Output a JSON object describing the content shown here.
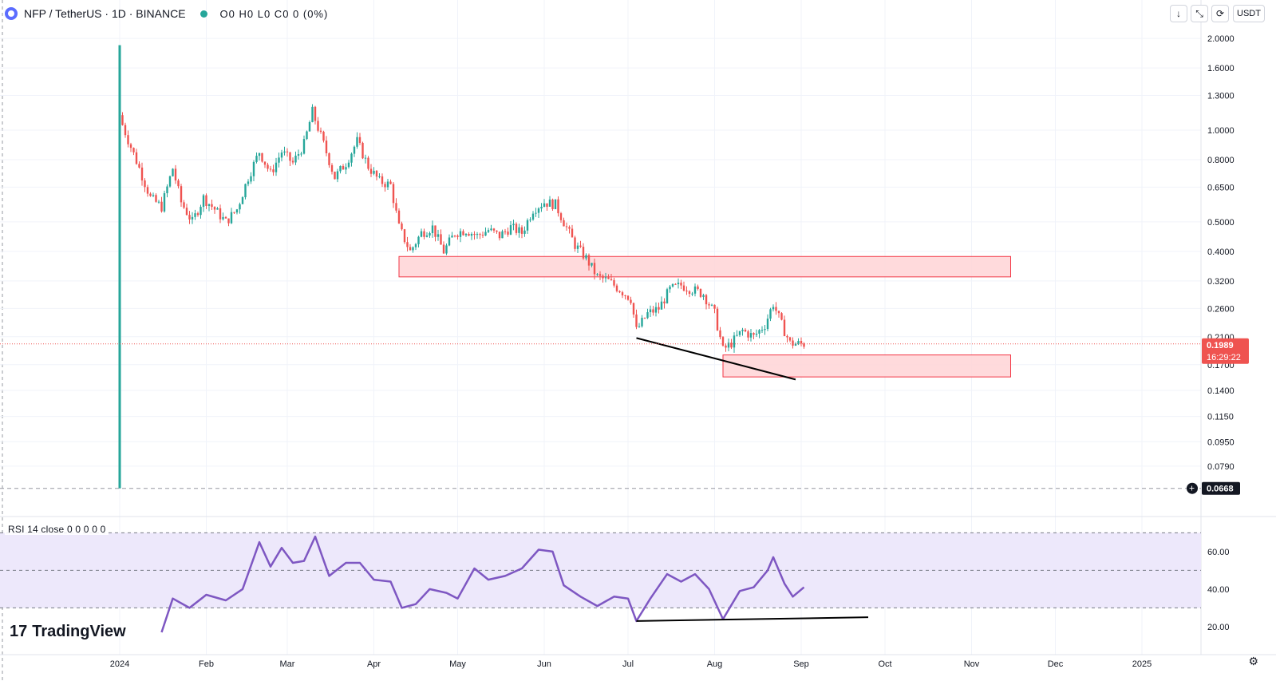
{
  "header": {
    "title": "NFP / TetherUS · 1D · BINANCE",
    "ohlc": "O0 H0 L0 C0 0 (0%)"
  },
  "toolbar": {
    "down_label": "↓",
    "collapse_label": "⤡",
    "refresh_label": "⟳",
    "currency": "USDT"
  },
  "rsi": {
    "label": "RSI 14 close 0 0 0 0 0"
  },
  "branding": {
    "name": "TradingView",
    "mark": "17"
  },
  "price_tags": {
    "last_price": "0.1989",
    "countdown": "16:29:22",
    "low_price": "0.0668"
  },
  "colors": {
    "up": "#26a69a",
    "down": "#ef5350",
    "zone_fill": "#ffd3d6",
    "zone_stroke": "#f23645",
    "rsi_line": "#7e57c2",
    "rsi_band": "#ede8fb",
    "trendline": "#000000"
  },
  "chart_data": [
    {
      "type": "candlestick",
      "x_axis": {
        "type": "date",
        "ticks": [
          "2024",
          "Feb",
          "Mar",
          "Apr",
          "May",
          "Jun",
          "Jul",
          "Aug",
          "Sep",
          "Oct",
          "Nov",
          "Dec",
          "2025"
        ]
      },
      "y_axis": {
        "scale": "log",
        "ticks": [
          "2.0000",
          "1.6000",
          "1.3000",
          "1.0000",
          "0.8000",
          "0.6500",
          "0.5000",
          "0.4000",
          "0.3200",
          "0.2600",
          "0.2100",
          "0.1700",
          "0.1400",
          "0.1150",
          "0.0950",
          "0.0790"
        ]
      },
      "listing_candle": {
        "date": "2024-01-01",
        "high": 1.9,
        "low": 0.0668
      },
      "close_path": [
        [
          "2024-01-01",
          1.1
        ],
        [
          "2024-01-04",
          0.93
        ],
        [
          "2024-01-08",
          0.75
        ],
        [
          "2024-01-12",
          0.6
        ],
        [
          "2024-01-16",
          0.56
        ],
        [
          "2024-01-20",
          0.75
        ],
        [
          "2024-01-23",
          0.58
        ],
        [
          "2024-01-27",
          0.5
        ],
        [
          "2024-01-31",
          0.6
        ],
        [
          "2024-02-04",
          0.55
        ],
        [
          "2024-02-08",
          0.5
        ],
        [
          "2024-02-12",
          0.55
        ],
        [
          "2024-02-16",
          0.7
        ],
        [
          "2024-02-20",
          0.85
        ],
        [
          "2024-02-24",
          0.72
        ],
        [
          "2024-02-28",
          0.85
        ],
        [
          "2024-03-03",
          0.78
        ],
        [
          "2024-03-07",
          0.9
        ],
        [
          "2024-03-10",
          1.15
        ],
        [
          "2024-03-14",
          0.9
        ],
        [
          "2024-03-18",
          0.7
        ],
        [
          "2024-03-22",
          0.78
        ],
        [
          "2024-03-26",
          0.92
        ],
        [
          "2024-03-30",
          0.76
        ],
        [
          "2024-04-03",
          0.68
        ],
        [
          "2024-04-07",
          0.66
        ],
        [
          "2024-04-10",
          0.48
        ],
        [
          "2024-04-14",
          0.4
        ],
        [
          "2024-04-18",
          0.46
        ],
        [
          "2024-04-22",
          0.48
        ],
        [
          "2024-04-26",
          0.4
        ],
        [
          "2024-04-30",
          0.46
        ],
        [
          "2024-05-04",
          0.47
        ],
        [
          "2024-05-08",
          0.45
        ],
        [
          "2024-05-12",
          0.47
        ],
        [
          "2024-05-16",
          0.45
        ],
        [
          "2024-05-20",
          0.48
        ],
        [
          "2024-05-24",
          0.46
        ],
        [
          "2024-05-28",
          0.55
        ],
        [
          "2024-06-01",
          0.58
        ],
        [
          "2024-06-05",
          0.57
        ],
        [
          "2024-06-08",
          0.5
        ],
        [
          "2024-06-12",
          0.42
        ],
        [
          "2024-06-16",
          0.38
        ],
        [
          "2024-06-20",
          0.33
        ],
        [
          "2024-06-24",
          0.32
        ],
        [
          "2024-06-28",
          0.3
        ],
        [
          "2024-07-02",
          0.28
        ],
        [
          "2024-07-04",
          0.22
        ],
        [
          "2024-07-08",
          0.25
        ],
        [
          "2024-07-12",
          0.26
        ],
        [
          "2024-07-16",
          0.3
        ],
        [
          "2024-07-20",
          0.31
        ],
        [
          "2024-07-24",
          0.3
        ],
        [
          "2024-07-28",
          0.29
        ],
        [
          "2024-08-01",
          0.25
        ],
        [
          "2024-08-04",
          0.19
        ],
        [
          "2024-08-07",
          0.2
        ],
        [
          "2024-08-11",
          0.22
        ],
        [
          "2024-08-15",
          0.21
        ],
        [
          "2024-08-19",
          0.23
        ],
        [
          "2024-08-22",
          0.27
        ],
        [
          "2024-08-25",
          0.23
        ],
        [
          "2024-08-28",
          0.2
        ],
        [
          "2024-09-01",
          0.1989
        ]
      ],
      "zones": [
        {
          "name": "resistance zone",
          "from": "2024-04-10",
          "to": "2024-11-15",
          "low": 0.33,
          "high": 0.385
        },
        {
          "name": "support zone",
          "from": "2024-08-04",
          "to": "2024-11-15",
          "low": 0.155,
          "high": 0.183
        }
      ],
      "trendline": {
        "from": [
          "2024-07-04",
          0.208
        ],
        "to": [
          "2024-08-30",
          0.152
        ]
      },
      "last_price": 0.1989,
      "low_marker": 0.0668
    },
    {
      "type": "line",
      "name": "RSI 14 close",
      "y_ticks": [
        "60.00",
        "40.00",
        "20.00"
      ],
      "band": [
        30,
        70
      ],
      "midline": 50,
      "series": [
        [
          "2024-01-16",
          17
        ],
        [
          "2024-01-20",
          35
        ],
        [
          "2024-01-26",
          30
        ],
        [
          "2024-02-01",
          37
        ],
        [
          "2024-02-08",
          34
        ],
        [
          "2024-02-14",
          40
        ],
        [
          "2024-02-20",
          65
        ],
        [
          "2024-02-24",
          52
        ],
        [
          "2024-02-28",
          62
        ],
        [
          "2024-03-03",
          54
        ],
        [
          "2024-03-07",
          55
        ],
        [
          "2024-03-11",
          68
        ],
        [
          "2024-03-16",
          47
        ],
        [
          "2024-03-22",
          54
        ],
        [
          "2024-03-27",
          54
        ],
        [
          "2024-04-01",
          45
        ],
        [
          "2024-04-07",
          44
        ],
        [
          "2024-04-11",
          30
        ],
        [
          "2024-04-16",
          32
        ],
        [
          "2024-04-21",
          40
        ],
        [
          "2024-04-27",
          38
        ],
        [
          "2024-05-01",
          35
        ],
        [
          "2024-05-07",
          51
        ],
        [
          "2024-05-12",
          45
        ],
        [
          "2024-05-18",
          47
        ],
        [
          "2024-05-24",
          51
        ],
        [
          "2024-05-30",
          61
        ],
        [
          "2024-06-04",
          60
        ],
        [
          "2024-06-08",
          42
        ],
        [
          "2024-06-14",
          36
        ],
        [
          "2024-06-20",
          31
        ],
        [
          "2024-06-26",
          36
        ],
        [
          "2024-07-01",
          35
        ],
        [
          "2024-07-04",
          23
        ],
        [
          "2024-07-09",
          35
        ],
        [
          "2024-07-15",
          48
        ],
        [
          "2024-07-20",
          44
        ],
        [
          "2024-07-25",
          48
        ],
        [
          "2024-07-30",
          40
        ],
        [
          "2024-08-04",
          24
        ],
        [
          "2024-08-10",
          39
        ],
        [
          "2024-08-15",
          41
        ],
        [
          "2024-08-20",
          50
        ],
        [
          "2024-08-22",
          57
        ],
        [
          "2024-08-26",
          43
        ],
        [
          "2024-08-29",
          36
        ],
        [
          "2024-09-02",
          41
        ]
      ],
      "support_line": {
        "from": [
          "2024-07-04",
          23
        ],
        "to": [
          "2024-09-25",
          25
        ]
      }
    }
  ]
}
